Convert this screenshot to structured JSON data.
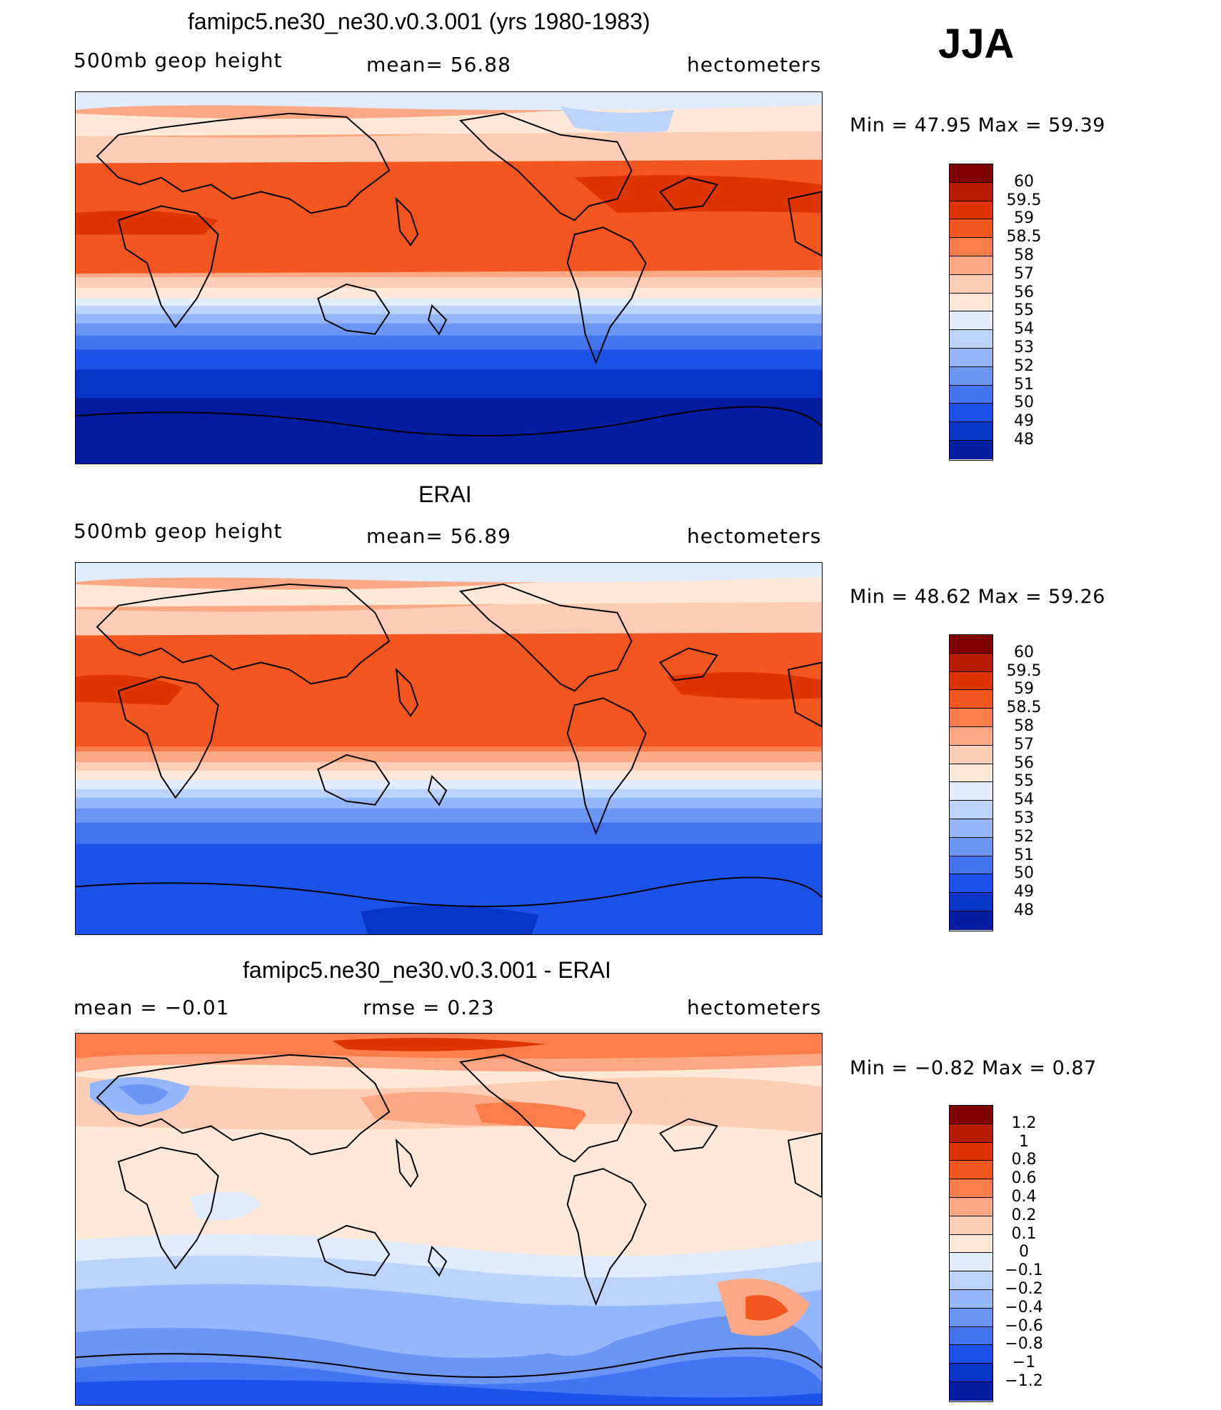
{
  "season": "JJA",
  "panels": [
    {
      "title": "famipc5.ne30_ne30.v0.3.001 (yrs 1980-1983)",
      "left_label": "500mb  geop  height",
      "center_label": "mean=   56.88",
      "right_label": "hectometers",
      "min_label": "Min  =    47.95  Max  =    59.39",
      "colorbar": {
        "labels": [
          "60",
          "59.5",
          "59",
          "58.5",
          "58",
          "57",
          "56",
          "55",
          "54",
          "53",
          "52",
          "51",
          "50",
          "49",
          "48"
        ],
        "colors": [
          "#800000",
          "#b51c00",
          "#dd3400",
          "#f3561e",
          "#fb7d4b",
          "#fca884",
          "#fdcdb5",
          "#fee8d8",
          "#e0ecff",
          "#bcd3fb",
          "#94b6fa",
          "#6b96f6",
          "#4374f2",
          "#1b52e8",
          "#0a34c8",
          "#031da0"
        ]
      }
    },
    {
      "title": "ERAI",
      "left_label": "500mb  geop  height",
      "center_label": "mean=   56.89",
      "right_label": "hectometers",
      "min_label": "Min  =    48.62  Max  =    59.26",
      "colorbar": {
        "labels": [
          "60",
          "59.5",
          "59",
          "58.5",
          "58",
          "57",
          "56",
          "55",
          "54",
          "53",
          "52",
          "51",
          "50",
          "49",
          "48"
        ],
        "colors": [
          "#800000",
          "#b51c00",
          "#dd3400",
          "#f3561e",
          "#fb7d4b",
          "#fca884",
          "#fdcdb5",
          "#fee8d8",
          "#e0ecff",
          "#bcd3fb",
          "#94b6fa",
          "#6b96f6",
          "#4374f2",
          "#1b52e8",
          "#0a34c8",
          "#031da0"
        ]
      }
    },
    {
      "title": "famipc5.ne30_ne30.v0.3.001 - ERAI",
      "left_label": "mean  =    −0.01",
      "center_label": "rmse  =     0.23",
      "right_label": "hectometers",
      "min_label": "Min  =    −0.82  Max  =      0.87",
      "colorbar": {
        "labels": [
          "1.2",
          "1",
          "0.8",
          "0.6",
          "0.4",
          "0.2",
          "0.1",
          "0",
          "−0.1",
          "−0.2",
          "−0.4",
          "−0.6",
          "−0.8",
          "−1",
          "−1.2"
        ],
        "colors": [
          "#800000",
          "#b51c00",
          "#dd3400",
          "#f3561e",
          "#fb7d4b",
          "#fca884",
          "#fdcdb5",
          "#fee8d8",
          "#e0ecff",
          "#bcd3fb",
          "#94b6fa",
          "#6b96f6",
          "#4374f2",
          "#1b52e8",
          "#0a34c8",
          "#031da0"
        ]
      }
    }
  ]
}
